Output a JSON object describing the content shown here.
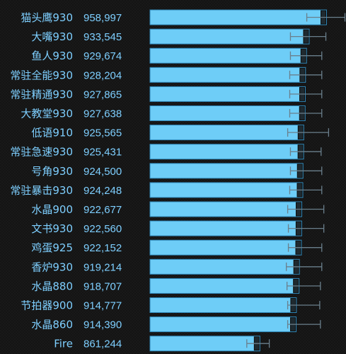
{
  "chart_data": {
    "type": "bar",
    "orientation": "horizontal",
    "categories": [
      "猫头鹰930",
      "大嘴930",
      "鱼人930",
      "常驻全能930",
      "常驻精通930",
      "大教堂930",
      "低语910",
      "常驻急速930",
      "号角930",
      "常驻暴击930",
      "水晶900",
      "文书930",
      "鸡蛋925",
      "香炉930",
      "水晶880",
      "节拍器900",
      "水晶860",
      "Fire"
    ],
    "value_labels": [
      "958,997",
      "933,545",
      "929,674",
      "928,204",
      "927,865",
      "927,638",
      "925,565",
      "925,431",
      "924,500",
      "924,248",
      "922,677",
      "922,560",
      "922,152",
      "919,214",
      "918,707",
      "914,777",
      "914,390",
      "861,244"
    ],
    "values": [
      958997,
      933545,
      929674,
      928204,
      927865,
      927638,
      925565,
      925431,
      924500,
      924248,
      922677,
      922560,
      922152,
      919214,
      918707,
      914777,
      914390,
      861244
    ],
    "error_low": [
      930000,
      906000,
      906000,
      905000,
      905000,
      905000,
      902000,
      906000,
      906000,
      905000,
      902000,
      903000,
      903000,
      900000,
      901000,
      902000,
      902000,
      842000
    ],
    "error_high": [
      986000,
      958000,
      952000,
      952000,
      952000,
      952000,
      962000,
      951000,
      952000,
      952000,
      955000,
      955000,
      952000,
      952000,
      950000,
      949000,
      950000,
      875000
    ],
    "xlim": [
      700000,
      1000000
    ],
    "bar_color": "#6ecdf7",
    "text_color": "#7ecfff",
    "background": "#141414"
  }
}
